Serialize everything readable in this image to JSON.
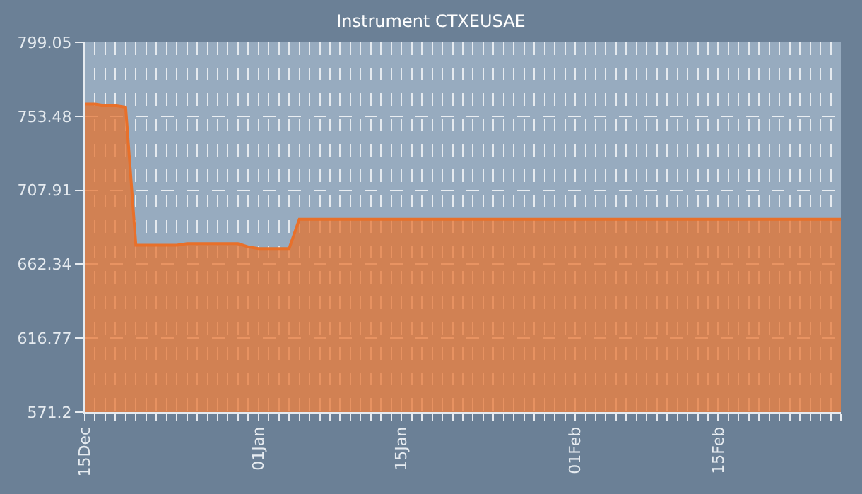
{
  "chart_data": {
    "type": "area",
    "title": "Instrument CTXEUSAE",
    "categories": [
      "15Dec",
      null,
      null,
      null,
      null,
      null,
      null,
      null,
      null,
      null,
      null,
      null,
      null,
      null,
      null,
      null,
      null,
      "01Jan",
      null,
      null,
      null,
      null,
      null,
      null,
      null,
      null,
      null,
      null,
      null,
      null,
      null,
      "15Jan",
      null,
      null,
      null,
      null,
      null,
      null,
      null,
      null,
      null,
      null,
      null,
      null,
      null,
      null,
      null,
      null,
      "01Feb",
      null,
      null,
      null,
      null,
      null,
      null,
      null,
      null,
      null,
      null,
      null,
      null,
      null,
      "15Feb",
      null,
      null,
      null,
      null,
      null,
      null,
      null,
      null,
      null,
      null,
      null,
      null
    ],
    "series": [
      {
        "color": "#e8702a",
        "values": [
          761,
          761,
          760,
          760,
          759,
          674,
          674,
          674,
          674,
          674,
          675,
          675,
          675,
          675,
          675,
          675,
          673,
          672,
          672,
          672,
          672,
          690,
          690,
          690,
          690,
          690,
          690,
          690,
          690,
          690,
          690,
          690,
          690,
          690,
          690,
          690,
          690,
          690,
          690,
          690,
          690,
          690,
          690,
          690,
          690,
          690,
          690,
          690,
          690,
          690,
          690,
          690,
          690,
          690,
          690,
          690,
          690,
          690,
          690,
          690,
          690,
          690,
          690,
          690,
          690,
          690,
          690,
          690,
          690,
          690,
          690,
          690,
          690,
          690,
          690
        ]
      }
    ],
    "ylim": [
      571.2,
      799.05
    ],
    "yticks": [
      571.2,
      616.77,
      662.34,
      707.91,
      753.48,
      799.05
    ],
    "grid": true
  }
}
